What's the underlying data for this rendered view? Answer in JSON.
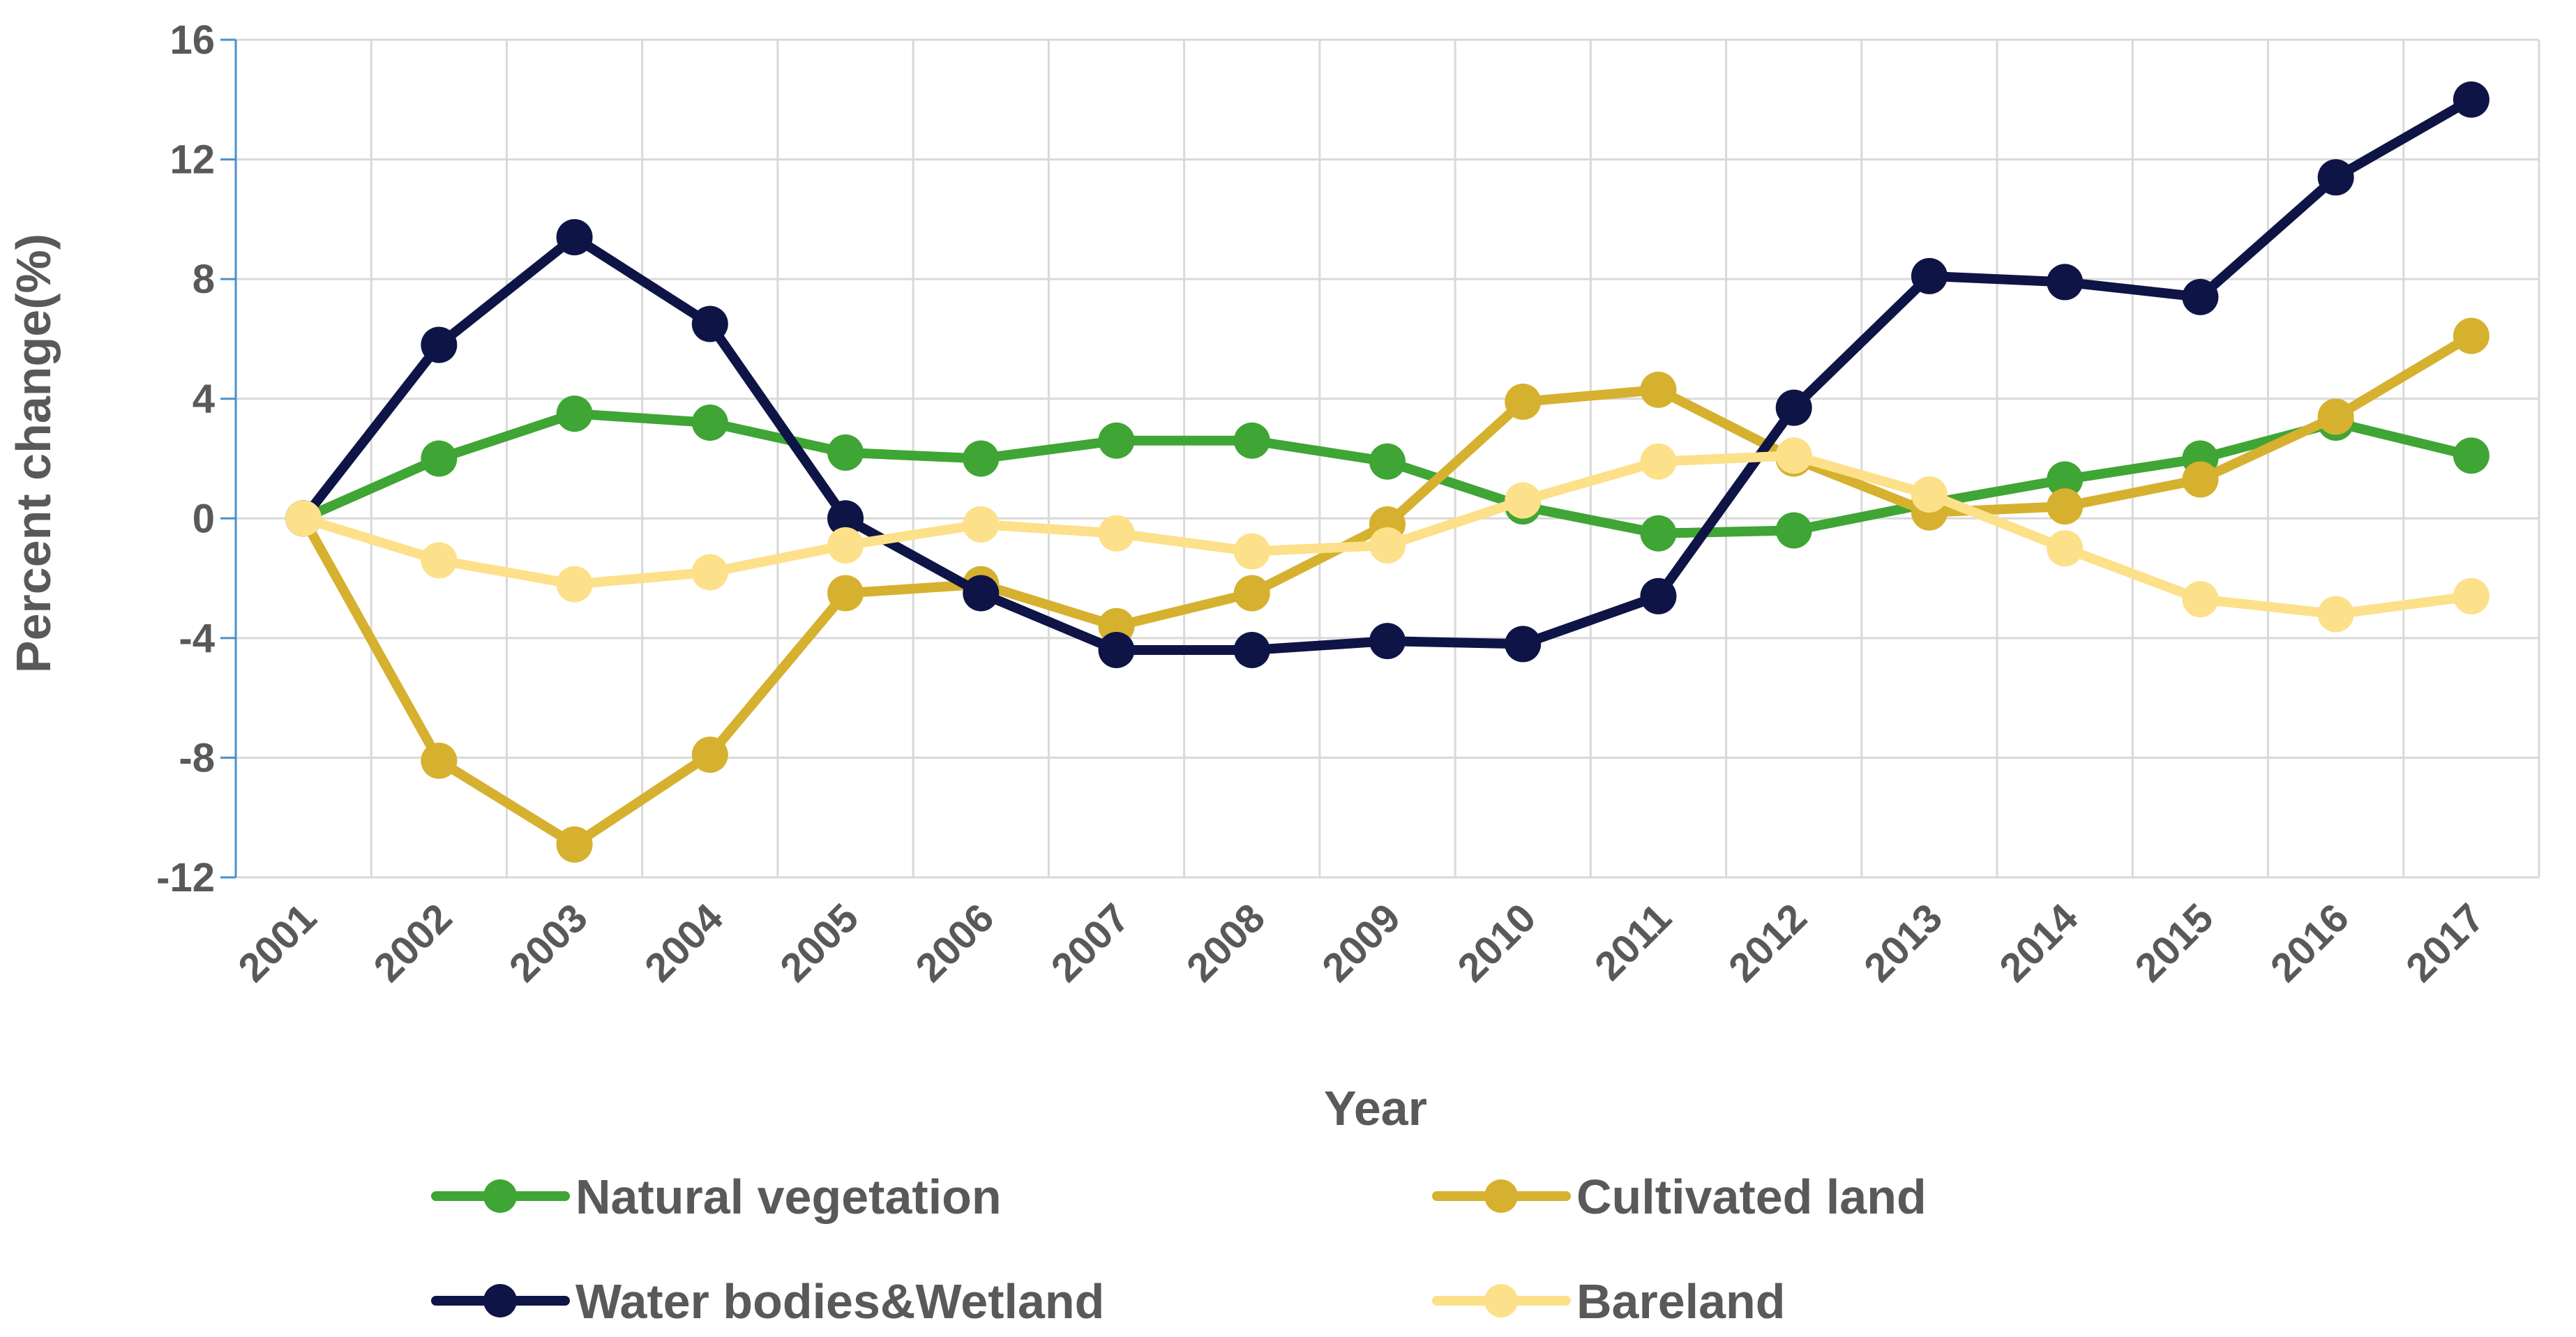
{
  "chart_data": {
    "type": "line",
    "title": "",
    "xlabel": "Year",
    "ylabel": "Percent change(%)",
    "ylim": [
      -12,
      16
    ],
    "yticks": [
      16,
      12,
      8,
      4,
      0,
      -4,
      -8,
      -12
    ],
    "ytick_labels": [
      "16",
      "12",
      "8",
      "4",
      "0",
      "-4",
      "-8",
      "-12"
    ],
    "categories": [
      "2001",
      "2002",
      "2003",
      "2004",
      "2005",
      "2006",
      "2007",
      "2008",
      "2009",
      "2010",
      "2011",
      "2012",
      "2013",
      "2014",
      "2015",
      "2016",
      "2017"
    ],
    "grid": true,
    "legend_position": "bottom",
    "series": [
      {
        "name": "Natural vegetation",
        "color": "#3fa535",
        "values": [
          0,
          2.0,
          3.5,
          3.2,
          2.2,
          2.0,
          2.6,
          2.6,
          1.9,
          0.4,
          -0.5,
          -0.4,
          0.5,
          1.3,
          2.0,
          3.2,
          2.1
        ]
      },
      {
        "name": "Cultivated land",
        "color": "#d6b12f",
        "values": [
          0,
          -8.1,
          -10.9,
          -7.9,
          -2.5,
          -2.2,
          -3.6,
          -2.5,
          -0.2,
          3.9,
          4.3,
          2.0,
          0.2,
          0.4,
          1.3,
          3.4,
          6.1
        ]
      },
      {
        "name": "Water bodies&Wetland",
        "color": "#0f1446",
        "values": [
          0,
          5.8,
          9.4,
          6.5,
          0,
          -2.5,
          -4.4,
          -4.4,
          -4.1,
          -4.2,
          -2.6,
          3.7,
          8.1,
          7.9,
          7.4,
          11.4,
          14.0
        ]
      },
      {
        "name": "Bareland",
        "color": "#fde08a",
        "values": [
          0,
          -1.4,
          -2.2,
          -1.8,
          -0.9,
          -0.2,
          -0.5,
          -1.1,
          -0.9,
          0.6,
          1.9,
          2.1,
          0.8,
          -1.0,
          -2.7,
          -3.2,
          -2.6
        ]
      }
    ]
  }
}
